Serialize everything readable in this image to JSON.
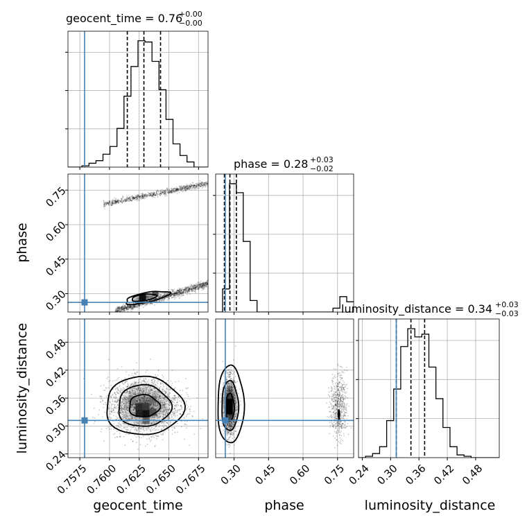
{
  "chart_data": {
    "type": "corner",
    "parameters": [
      "geocent_time",
      "phase",
      "luminosity_distance"
    ],
    "axis_labels": [
      "geocent_time",
      "phase",
      "luminosity_distance"
    ],
    "titles": [
      {
        "name": "geocent_time",
        "value": "0.76",
        "plus": "+0.00",
        "minus": "−0.00"
      },
      {
        "name": "phase",
        "value": "0.28",
        "plus": "+0.03",
        "minus": "−0.02"
      },
      {
        "name": "luminosity_distance",
        "value": "0.34",
        "plus": "+0.03",
        "minus": "−0.03"
      }
    ],
    "ranges": {
      "geocent_time": [
        0.7565,
        0.7683
      ],
      "phase": [
        0.22,
        0.82
      ],
      "luminosity_distance": [
        0.232,
        0.53
      ]
    },
    "ticks": {
      "geocent_time": {
        "values": [
          0.7575,
          0.76,
          0.7625,
          0.765,
          0.7675
        ],
        "labels": [
          "0.7575",
          "0.7600",
          "0.7625",
          "0.7650",
          "0.7675"
        ]
      },
      "phase": {
        "values": [
          0.3,
          0.45,
          0.6,
          0.75
        ],
        "labels": [
          "0.30",
          "0.45",
          "0.60",
          "0.75"
        ]
      },
      "luminosity_distance": {
        "values": [
          0.24,
          0.3,
          0.36,
          0.42,
          0.48
        ],
        "labels": [
          "0.24",
          "0.30",
          "0.36",
          "0.42",
          "0.48"
        ]
      }
    },
    "truths": {
      "geocent_time": 0.7579,
      "phase": 0.262,
      "luminosity_distance": 0.312
    },
    "quantiles": {
      "geocent_time": [
        0.7615,
        0.7629,
        0.7643
      ],
      "phase": [
        0.258,
        0.282,
        0.31
      ],
      "luminosity_distance": [
        0.312,
        0.343,
        0.372
      ]
    },
    "histograms": {
      "geocent_time": {
        "edges_start": 0.7565,
        "edges_end": 0.7683,
        "counts": [
          0,
          0,
          1,
          3,
          5,
          10,
          16,
          30,
          55,
          78,
          98,
          97,
          82,
          60,
          37,
          18,
          9,
          4,
          0,
          0
        ]
      },
      "phase": {
        "edges_start": 0.22,
        "edges_end": 0.82,
        "counts": [
          0,
          18,
          100,
          93,
          55,
          9,
          0,
          0,
          0,
          0,
          0,
          0,
          0,
          0,
          0,
          0,
          0,
          3,
          12,
          8
        ]
      },
      "luminosity_distance": {
        "edges_start": 0.232,
        "edges_end": 0.53,
        "counts": [
          0,
          1,
          3,
          8,
          27,
          50,
          81,
          94,
          88,
          90,
          66,
          43,
          22,
          8,
          2,
          1,
          0,
          0,
          0,
          0
        ]
      }
    },
    "grid": true
  }
}
